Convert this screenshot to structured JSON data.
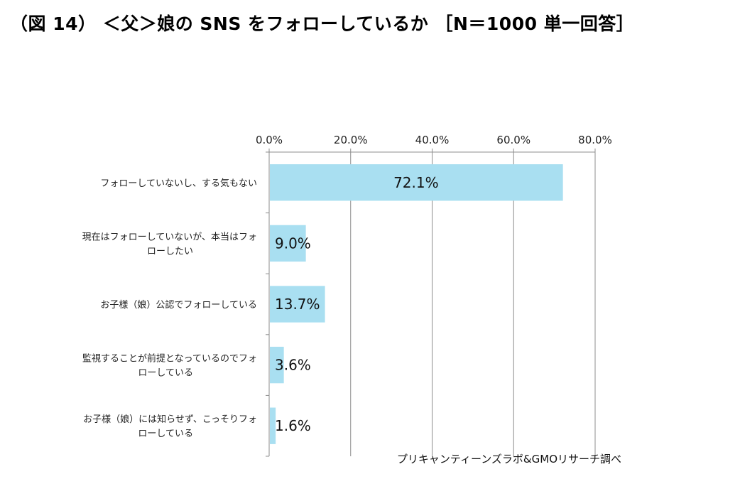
{
  "page": {
    "title": "（図 14） ＜父＞娘の SNS をフォローしているか ［N＝1000 単一回答］"
  },
  "chart_data": {
    "type": "bar",
    "orientation": "horizontal",
    "title": "",
    "xlabel": "",
    "ylabel": "",
    "categories": [
      [
        "フォローしていないし、する気もない"
      ],
      [
        "現在はフォローしていないが、本当はフォ",
        "ローしたい"
      ],
      [
        "お子様（娘）公認でフォローしている"
      ],
      [
        "監視することが前提となっているのでフォ",
        "ローしている"
      ],
      [
        "お子様（娘）には知らせず、こっそりフォ",
        "ローしている"
      ]
    ],
    "values": [
      72.1,
      9.0,
      13.7,
      3.6,
      1.6
    ],
    "value_labels": [
      "72.1%",
      "9.0%",
      "13.7%",
      "3.6%",
      "1.6%"
    ],
    "xlim": [
      0,
      80
    ],
    "xticks": [
      0,
      20,
      40,
      60,
      80
    ],
    "xtick_labels": [
      "0.0%",
      "20.0%",
      "40.0%",
      "60.0%",
      "80.0%"
    ],
    "axis_position": "top",
    "grid": true,
    "legend": "none",
    "bar_color": "#a9dff1",
    "grid_color": "#8c8c8c",
    "source_note": "プリキャンティーンズラボ&GMOリサーチ調べ"
  }
}
